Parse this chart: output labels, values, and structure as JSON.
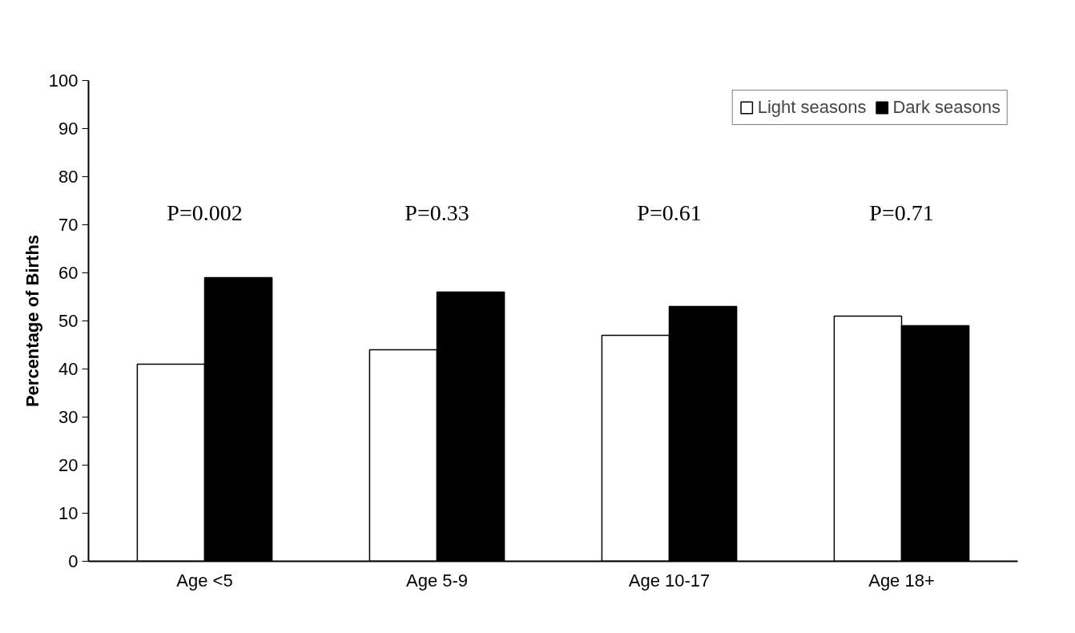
{
  "chart_data": {
    "type": "bar",
    "ylabel": "Percentage of Births",
    "categories": [
      "Age <5",
      "Age 5-9",
      "Age 10-17",
      "Age 18+"
    ],
    "series": [
      {
        "name": "Light seasons",
        "color": "#ffffff",
        "values": [
          41,
          44,
          47,
          51
        ]
      },
      {
        "name": "Dark seasons",
        "color": "#000000",
        "values": [
          59,
          56,
          53,
          49
        ]
      }
    ],
    "ylim": [
      0,
      100
    ],
    "yticks": [
      0,
      10,
      20,
      30,
      40,
      50,
      60,
      70,
      80,
      90,
      100
    ],
    "grid": false,
    "legend": "top right",
    "annotations": [
      "P=0.002",
      "P=0.33",
      "P=0.61",
      "P=0.71"
    ]
  }
}
